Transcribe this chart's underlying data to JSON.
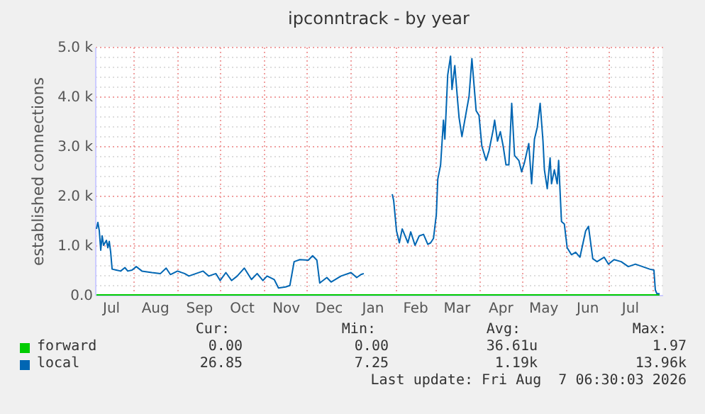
{
  "chart_data": {
    "type": "line",
    "title": "ipconntrack - by year",
    "ylabel": "established connections",
    "xlim": [
      "2025-07-05",
      "2026-08-08"
    ],
    "xticks": [
      {
        "value": "2025-07-16",
        "label": "Jul"
      },
      {
        "value": "2025-08-01",
        "label": null
      },
      {
        "value": "2025-08-16",
        "label": "Aug"
      },
      {
        "value": "2025-09-01",
        "label": null
      },
      {
        "value": "2025-09-16",
        "label": "Sep"
      },
      {
        "value": "2025-10-01",
        "label": null
      },
      {
        "value": "2025-10-16",
        "label": "Oct"
      },
      {
        "value": "2025-11-01",
        "label": null
      },
      {
        "value": "2025-11-16",
        "label": "Nov"
      },
      {
        "value": "2025-12-01",
        "label": null
      },
      {
        "value": "2025-12-16",
        "label": "Dec"
      },
      {
        "value": "2026-01-01",
        "label": null
      },
      {
        "value": "2026-01-16",
        "label": "Jan"
      },
      {
        "value": "2026-02-01",
        "label": null
      },
      {
        "value": "2026-02-15",
        "label": "Feb"
      },
      {
        "value": "2026-03-01",
        "label": null
      },
      {
        "value": "2026-03-16",
        "label": "Mar"
      },
      {
        "value": "2026-04-01",
        "label": null
      },
      {
        "value": "2026-04-16",
        "label": "Apr"
      },
      {
        "value": "2026-05-01",
        "label": null
      },
      {
        "value": "2026-05-16",
        "label": "May"
      },
      {
        "value": "2026-06-01",
        "label": null
      },
      {
        "value": "2026-06-16",
        "label": "Jun"
      },
      {
        "value": "2026-07-01",
        "label": null
      },
      {
        "value": "2026-07-16",
        "label": "Jul"
      },
      {
        "value": "2026-08-01",
        "label": null
      }
    ],
    "ylim": [
      0,
      5000
    ],
    "yticks": [
      {
        "value": 0,
        "label": "0.0"
      },
      {
        "value": 200,
        "label": null
      },
      {
        "value": 400,
        "label": null
      },
      {
        "value": 600,
        "label": null
      },
      {
        "value": 800,
        "label": null
      },
      {
        "value": 1000,
        "label": "1.0 k"
      },
      {
        "value": 1200,
        "label": null
      },
      {
        "value": 1400,
        "label": null
      },
      {
        "value": 1600,
        "label": null
      },
      {
        "value": 1800,
        "label": null
      },
      {
        "value": 2000,
        "label": "2.0 k"
      },
      {
        "value": 2200,
        "label": null
      },
      {
        "value": 2400,
        "label": null
      },
      {
        "value": 2600,
        "label": null
      },
      {
        "value": 2800,
        "label": null
      },
      {
        "value": 3000,
        "label": "3.0 k"
      },
      {
        "value": 3200,
        "label": null
      },
      {
        "value": 3400,
        "label": null
      },
      {
        "value": 3600,
        "label": null
      },
      {
        "value": 3800,
        "label": null
      },
      {
        "value": 4000,
        "label": "4.0 k"
      },
      {
        "value": 4200,
        "label": null
      },
      {
        "value": 4400,
        "label": null
      },
      {
        "value": 4600,
        "label": null
      },
      {
        "value": 4800,
        "label": null
      },
      {
        "value": 5000,
        "label": "5.0 k"
      }
    ],
    "grid": true,
    "legend": "bottom",
    "series": [
      {
        "name": "forward",
        "color": "#00cc00",
        "x": [
          "2025-07-06",
          "2026-08-06"
        ],
        "values": [
          0,
          0
        ]
      },
      {
        "name": "local",
        "color": "#0066b3",
        "x": [
          "2025-07-06",
          "2025-07-07",
          "2025-07-08",
          "2025-07-09",
          "2025-07-10",
          "2025-07-11",
          "2025-07-13",
          "2025-07-14",
          "2025-07-15",
          "2025-07-16",
          "2025-07-17",
          "2025-07-20",
          "2025-07-23",
          "2025-07-26",
          "2025-07-28",
          "2025-07-31",
          "2025-08-03",
          "2025-08-07",
          "2025-08-14",
          "2025-08-20",
          "2025-08-24",
          "2025-08-27",
          "2025-09-01",
          "2025-09-06",
          "2025-09-09",
          "2025-09-14",
          "2025-09-19",
          "2025-09-23",
          "2025-09-28",
          "2025-10-01",
          "2025-10-05",
          "2025-10-09",
          "2025-10-13",
          "2025-10-18",
          "2025-10-23",
          "2025-10-27",
          "2025-10-31",
          "2025-11-03",
          "2025-11-08",
          "2025-11-11",
          "2025-11-16",
          "2025-11-19",
          "2025-11-22",
          "2025-11-26",
          "2025-12-02",
          "2025-12-05",
          "2025-12-08",
          "2025-12-10",
          "2025-12-15",
          "2025-12-18",
          "2025-12-25",
          "2026-01-01",
          "2026-01-05",
          "2026-01-08",
          "2026-01-10",
          "2026-01-20",
          "2026-01-30",
          "2026-01-31",
          "2026-02-02",
          "2026-02-04",
          "2026-02-06",
          "2026-02-08",
          "2026-02-10",
          "2026-02-12",
          "2026-02-15",
          "2026-02-18",
          "2026-02-21",
          "2026-02-24",
          "2026-02-26",
          "2026-02-28",
          "2026-03-02",
          "2026-03-03",
          "2026-03-05",
          "2026-03-07",
          "2026-03-08",
          "2026-03-10",
          "2026-03-12",
          "2026-03-13",
          "2026-03-15",
          "2026-03-17",
          "2026-03-18",
          "2026-03-20",
          "2026-03-22",
          "2026-03-25",
          "2026-03-27",
          "2026-03-30",
          "2026-04-01",
          "2026-04-03",
          "2026-04-06",
          "2026-04-08",
          "2026-04-11",
          "2026-04-12",
          "2026-04-14",
          "2026-04-16",
          "2026-04-18",
          "2026-04-20",
          "2026-04-22",
          "2026-04-24",
          "2026-04-26",
          "2026-04-29",
          "2026-05-01",
          "2026-05-03",
          "2026-05-06",
          "2026-05-08",
          "2026-05-10",
          "2026-05-12",
          "2026-05-14",
          "2026-05-16",
          "2026-05-17",
          "2026-05-19",
          "2026-05-21",
          "2026-05-22",
          "2026-05-24",
          "2026-05-26",
          "2026-05-27",
          "2026-05-29",
          "2026-05-31",
          "2026-06-02",
          "2026-06-05",
          "2026-06-08",
          "2026-06-11",
          "2026-06-15",
          "2026-06-17",
          "2026-06-20",
          "2026-06-23",
          "2026-06-28",
          "2026-07-01",
          "2026-07-05",
          "2026-07-10",
          "2026-07-15",
          "2026-07-20",
          "2026-07-25",
          "2026-07-30",
          "2026-08-02",
          "2026-08-03",
          "2026-08-04",
          "2026-08-06"
        ],
        "values": [
          1330,
          1460,
          1290,
          900,
          1190,
          1000,
          1100,
          950,
          1080,
          860,
          520,
          500,
          480,
          550,
          480,
          500,
          570,
          480,
          450,
          430,
          540,
          410,
          480,
          430,
          380,
          430,
          480,
          380,
          430,
          290,
          450,
          290,
          380,
          540,
          310,
          430,
          290,
          380,
          310,
          140,
          160,
          190,
          670,
          710,
          700,
          790,
          700,
          240,
          350,
          260,
          380,
          450,
          350,
          410,
          430,
          null,
          2030,
          1900,
          1290,
          1050,
          1330,
          1190,
          1050,
          1270,
          1000,
          1190,
          1220,
          1020,
          1050,
          1140,
          1620,
          2330,
          2620,
          3520,
          3140,
          4430,
          4810,
          4140,
          4620,
          3900,
          3570,
          3190,
          3520,
          4000,
          4760,
          3710,
          3620,
          3000,
          2710,
          2900,
          3330,
          3520,
          3100,
          3290,
          3000,
          2620,
          2620,
          3860,
          2810,
          2710,
          2480,
          2670,
          3050,
          2240,
          3140,
          3380,
          3860,
          3100,
          2520,
          2140,
          2760,
          2240,
          2520,
          2240,
          2710,
          1480,
          1430,
          950,
          810,
          860,
          760,
          1290,
          1380,
          730,
          670,
          760,
          620,
          710,
          670,
          570,
          620,
          570,
          520,
          500,
          100,
          30,
          20
        ]
      }
    ],
    "annotations": [
      "Cur:",
      "Min:",
      "Avg:",
      "Max:",
      "0.00",
      "0.00",
      "36.61u",
      "1.97",
      "26.85",
      "7.25",
      "1.19k",
      "13.96k",
      "Last update: Fri Aug  7 06:30:03 2026"
    ]
  }
}
